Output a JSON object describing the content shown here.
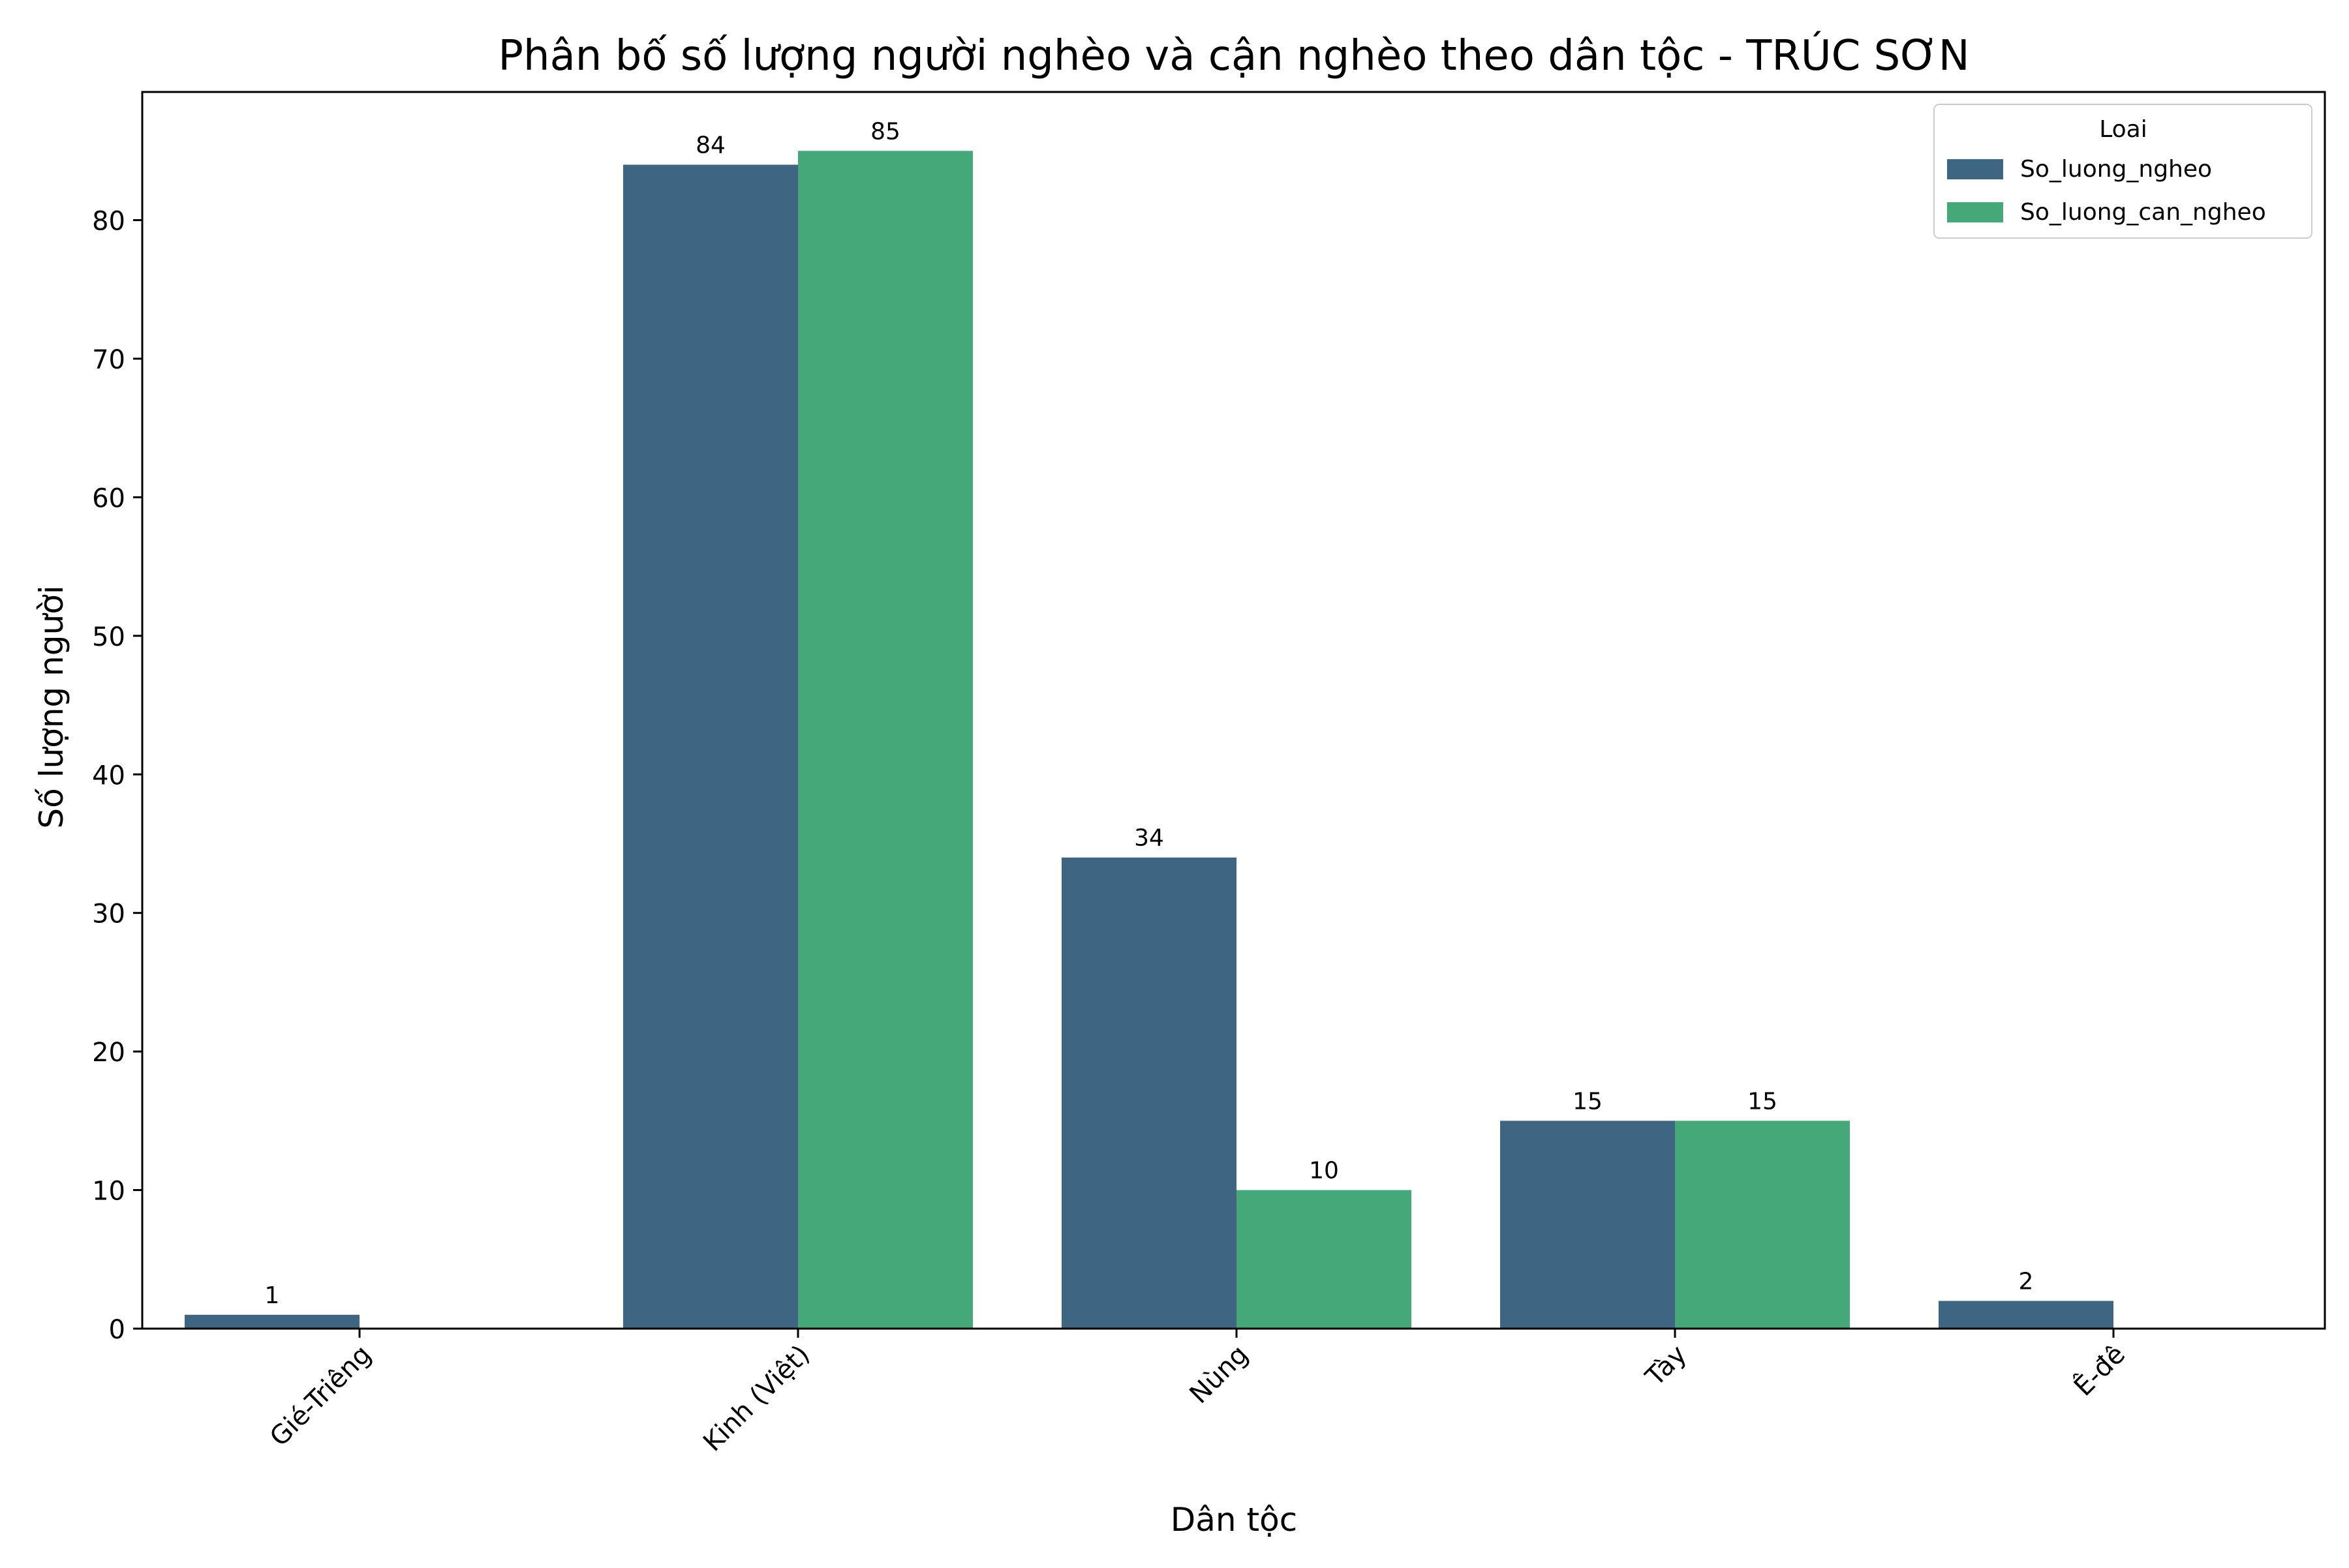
{
  "chart_data": {
    "type": "bar",
    "title": "Phân bố số lượng người nghèo và cận nghèo theo dân tộc - TRÚC SƠN",
    "xlabel": "Dân tộc",
    "ylabel": "Số lượng người",
    "categories": [
      "Gié-Triêng",
      "Kinh (Việt)",
      "Nùng",
      "Tày",
      "Ê-đê"
    ],
    "series": [
      {
        "name": "So_luong_ngheo",
        "color": "#3e6682",
        "values": [
          1,
          84,
          34,
          15,
          2
        ]
      },
      {
        "name": "So_luong_can_ngheo",
        "color": "#45a878",
        "values": [
          null,
          85,
          10,
          15,
          null
        ]
      }
    ],
    "ylim": [
      0,
      89.25
    ],
    "yticks": [
      0,
      10,
      20,
      30,
      40,
      50,
      60,
      70,
      80
    ],
    "legend": {
      "title": "Loai",
      "placement": "top-right"
    },
    "grid": false
  }
}
